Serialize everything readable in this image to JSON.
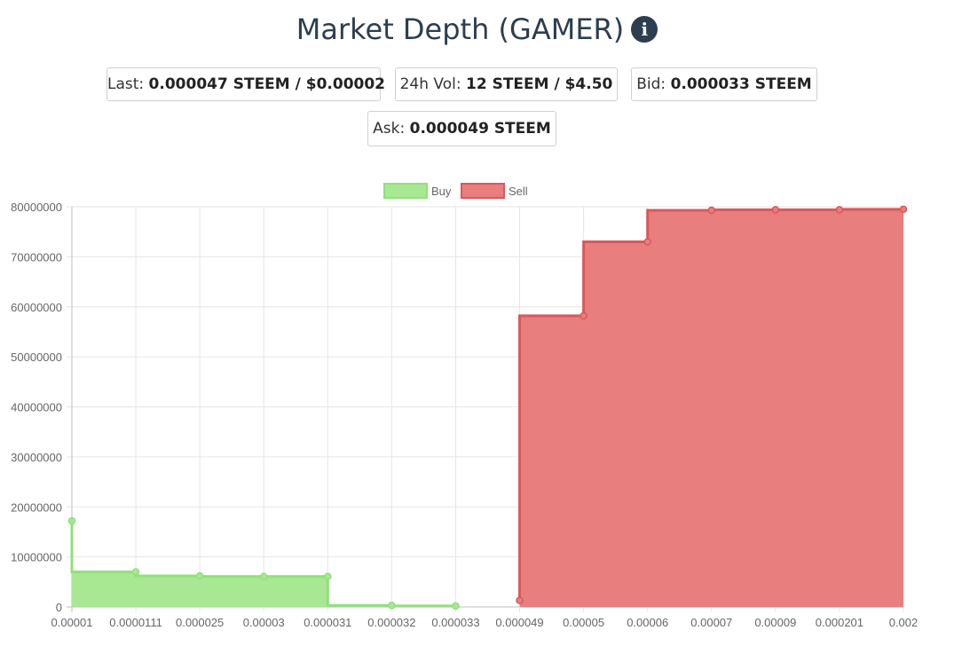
{
  "header": {
    "title": "Market Depth (GAMER)",
    "info_icon": "info-icon",
    "info_glyph": "i"
  },
  "stats": {
    "last_label": "Last:",
    "last_value": "0.000047 STEEM / $0.00002",
    "vol_label": "24h Vol:",
    "vol_value": "12 STEEM / $4.50",
    "bid_label": "Bid:",
    "bid_value": "0.000033 STEEM",
    "ask_label": "Ask:",
    "ask_value": "0.000049 STEEM"
  },
  "chart_data": {
    "type": "area",
    "stepped": true,
    "categories": [
      "0.00001",
      "0.0000111",
      "0.000025",
      "0.00003",
      "0.000031",
      "0.000032",
      "0.000033",
      "0.000049",
      "0.00005",
      "0.00006",
      "0.00007",
      "0.00009",
      "0.000201",
      "0.002"
    ],
    "ylim": [
      0,
      80000000
    ],
    "yticks": [
      "0",
      "10000000",
      "20000000",
      "30000000",
      "40000000",
      "50000000",
      "60000000",
      "70000000",
      "80000000"
    ],
    "legend_position": "top",
    "series": [
      {
        "name": "Buy",
        "color": "#90e07a",
        "fill": "#a8e892",
        "points": [
          [
            0,
            17200000
          ],
          [
            1,
            7000000
          ],
          [
            2,
            6200000
          ],
          [
            3,
            6100000
          ],
          [
            4,
            6100000
          ],
          [
            5,
            300000
          ],
          [
            6,
            200000
          ]
        ]
      },
      {
        "name": "Sell",
        "color": "#d9595b",
        "fill": "#e87e7e",
        "points": [
          [
            7,
            1300000
          ],
          [
            8,
            58200000
          ],
          [
            9,
            73000000
          ],
          [
            10,
            79300000
          ],
          [
            11,
            79400000
          ],
          [
            12,
            79400000
          ],
          [
            13,
            79500000
          ]
        ]
      }
    ]
  }
}
